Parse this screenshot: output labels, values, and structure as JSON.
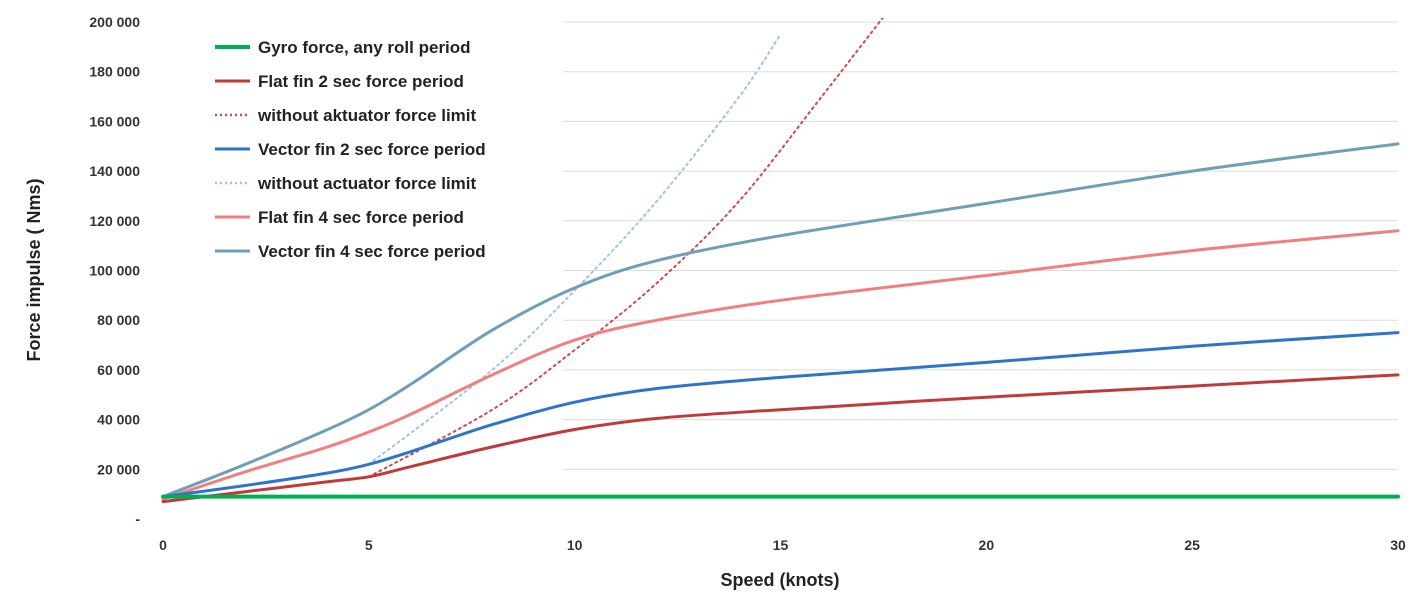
{
  "chart_data": {
    "type": "line",
    "xlabel": "Speed (knots)",
    "ylabel": "Force impulse ( Nms)",
    "xlim": [
      0,
      30
    ],
    "ylim": [
      0,
      200000
    ],
    "x_ticks": [
      0,
      5,
      10,
      15,
      20,
      25,
      30
    ],
    "x_tick_labels": [
      "0",
      "5",
      "10",
      "15",
      "20",
      "25",
      "30"
    ],
    "y_ticks": [
      0,
      20000,
      40000,
      60000,
      80000,
      100000,
      120000,
      140000,
      160000,
      180000,
      200000
    ],
    "y_tick_labels": [
      "-",
      "20 000",
      "40 000",
      "60 000",
      "80 000",
      "100 000",
      "120 000",
      "140 000",
      "160 000",
      "180 000",
      "200 000"
    ],
    "grid": "horizontal",
    "legend_position": "top-left",
    "series": [
      {
        "name": "Gyro force, any roll period",
        "color": "#00b050",
        "style": "solid",
        "x": [
          0,
          5,
          10,
          15,
          20,
          25,
          30
        ],
        "y": [
          9000,
          9000,
          9000,
          9000,
          9000,
          9000,
          9000
        ]
      },
      {
        "name": "Flat fin 2 sec force period",
        "color": "#c0393b",
        "style": "solid",
        "x": [
          0,
          2,
          4,
          5,
          6,
          8,
          10,
          12,
          15,
          20,
          25,
          30
        ],
        "y": [
          7000,
          11000,
          15000,
          17000,
          21000,
          29000,
          36000,
          40500,
          44000,
          49000,
          53500,
          58000
        ]
      },
      {
        "name": "without aktuator force limit",
        "color": "#d14a4a",
        "style": "dotted",
        "x": [
          5,
          8,
          10,
          12,
          14,
          16,
          17.5
        ],
        "y": [
          17000,
          44000,
          68000,
          95000,
          128000,
          170000,
          202000
        ]
      },
      {
        "name": "Vector fin 2 sec force period",
        "color": "#2e75c9",
        "style": "solid",
        "x": [
          0,
          2,
          4,
          5,
          6,
          8,
          10,
          12,
          15,
          20,
          25,
          30
        ],
        "y": [
          9000,
          13500,
          18500,
          22000,
          27000,
          38000,
          47000,
          52500,
          57000,
          63000,
          69500,
          75000
        ]
      },
      {
        "name": "without actuator force limit",
        "color": "#9ec4e8",
        "style": "dotted",
        "x": [
          5,
          8,
          10,
          12,
          14,
          15
        ],
        "y": [
          22000,
          60000,
          92000,
          128000,
          170000,
          195000
        ]
      },
      {
        "name": "Flat fin 4 sec force period",
        "color": "#f08080",
        "style": "solid",
        "x": [
          0,
          2,
          4,
          5,
          6,
          8,
          10,
          12,
          15,
          20,
          25,
          30
        ],
        "y": [
          8000,
          19000,
          29000,
          35000,
          42000,
          58000,
          72000,
          80000,
          88000,
          98000,
          108000,
          116000
        ]
      },
      {
        "name": "Vector fin 4 sec force period",
        "color": "#6f9fb8",
        "style": "solid",
        "x": [
          0,
          2,
          4,
          5,
          6,
          8,
          10,
          12,
          15,
          20,
          25,
          30
        ],
        "y": [
          9000,
          22000,
          36000,
          44000,
          54000,
          76000,
          93000,
          104000,
          114000,
          127000,
          140000,
          151000
        ]
      }
    ]
  }
}
